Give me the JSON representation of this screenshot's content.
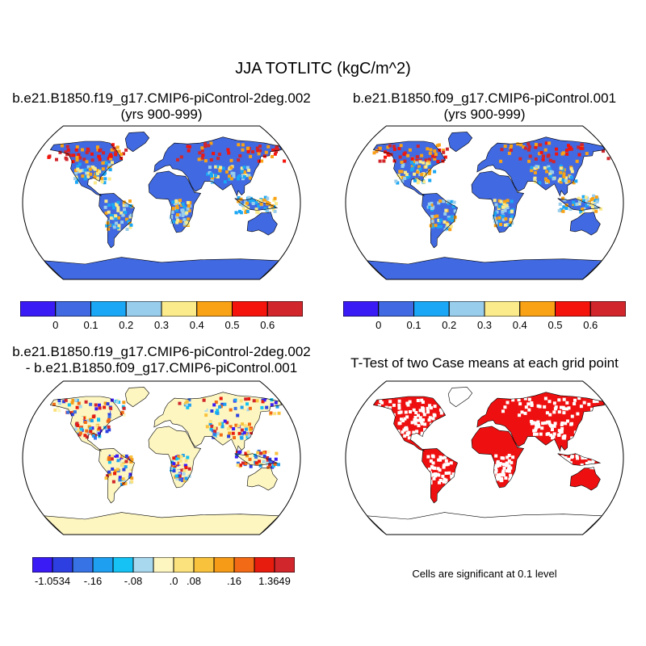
{
  "title": "JJA TOTLITC (kgC/m^2)",
  "panels": [
    {
      "title_line1": "b.e21.B1850.f19_g17.CMIP6-piControl-2deg.002",
      "title_line2": "(yrs 900-999)"
    },
    {
      "title_line1": "b.e21.B1850.f09_g17.CMIP6-piControl.001",
      "title_line2": "(yrs 900-999)"
    },
    {
      "title_line1": "b.e21.B1850.f19_g17.CMIP6-piControl-2deg.002",
      "title_line2": "- b.e21.B1850.f09_g17.CMIP6-piControl.001"
    },
    {
      "title_line1": "T-Test of two Case means at each grid point",
      "title_line2": ""
    }
  ],
  "colorbar_cases": {
    "colors": [
      "#3b1bf5",
      "#4169e1",
      "#1aa7f5",
      "#98cdec",
      "#fbeb8a",
      "#f9a215",
      "#f4140c",
      "#d1262c"
    ],
    "labels": [
      "0",
      "0.1",
      "0.2",
      "0.3",
      "0.4",
      "0.5",
      "0.6"
    ]
  },
  "colorbar_diff": {
    "colors": [
      "#3b1bf5",
      "#2d3fe0",
      "#3873e6",
      "#1f9ff0",
      "#15c2f3",
      "#a8d8ee",
      "#fdf6c1",
      "#fbe27d",
      "#f8c23d",
      "#f59b18",
      "#f26a15",
      "#e81c0e",
      "#d1262c"
    ],
    "labels": [
      "-1.0534",
      "-.16",
      "-.08",
      ".0",
      ".08",
      ".16",
      "1.3649"
    ]
  },
  "ttest_note": "Cells are significant at 0.1 level",
  "ttest_color": "#ee1010",
  "ocean_color": "#ffffff",
  "antarctica_case_color": "#4169e1",
  "antarctica_diff_color": "#fdf6c1"
}
